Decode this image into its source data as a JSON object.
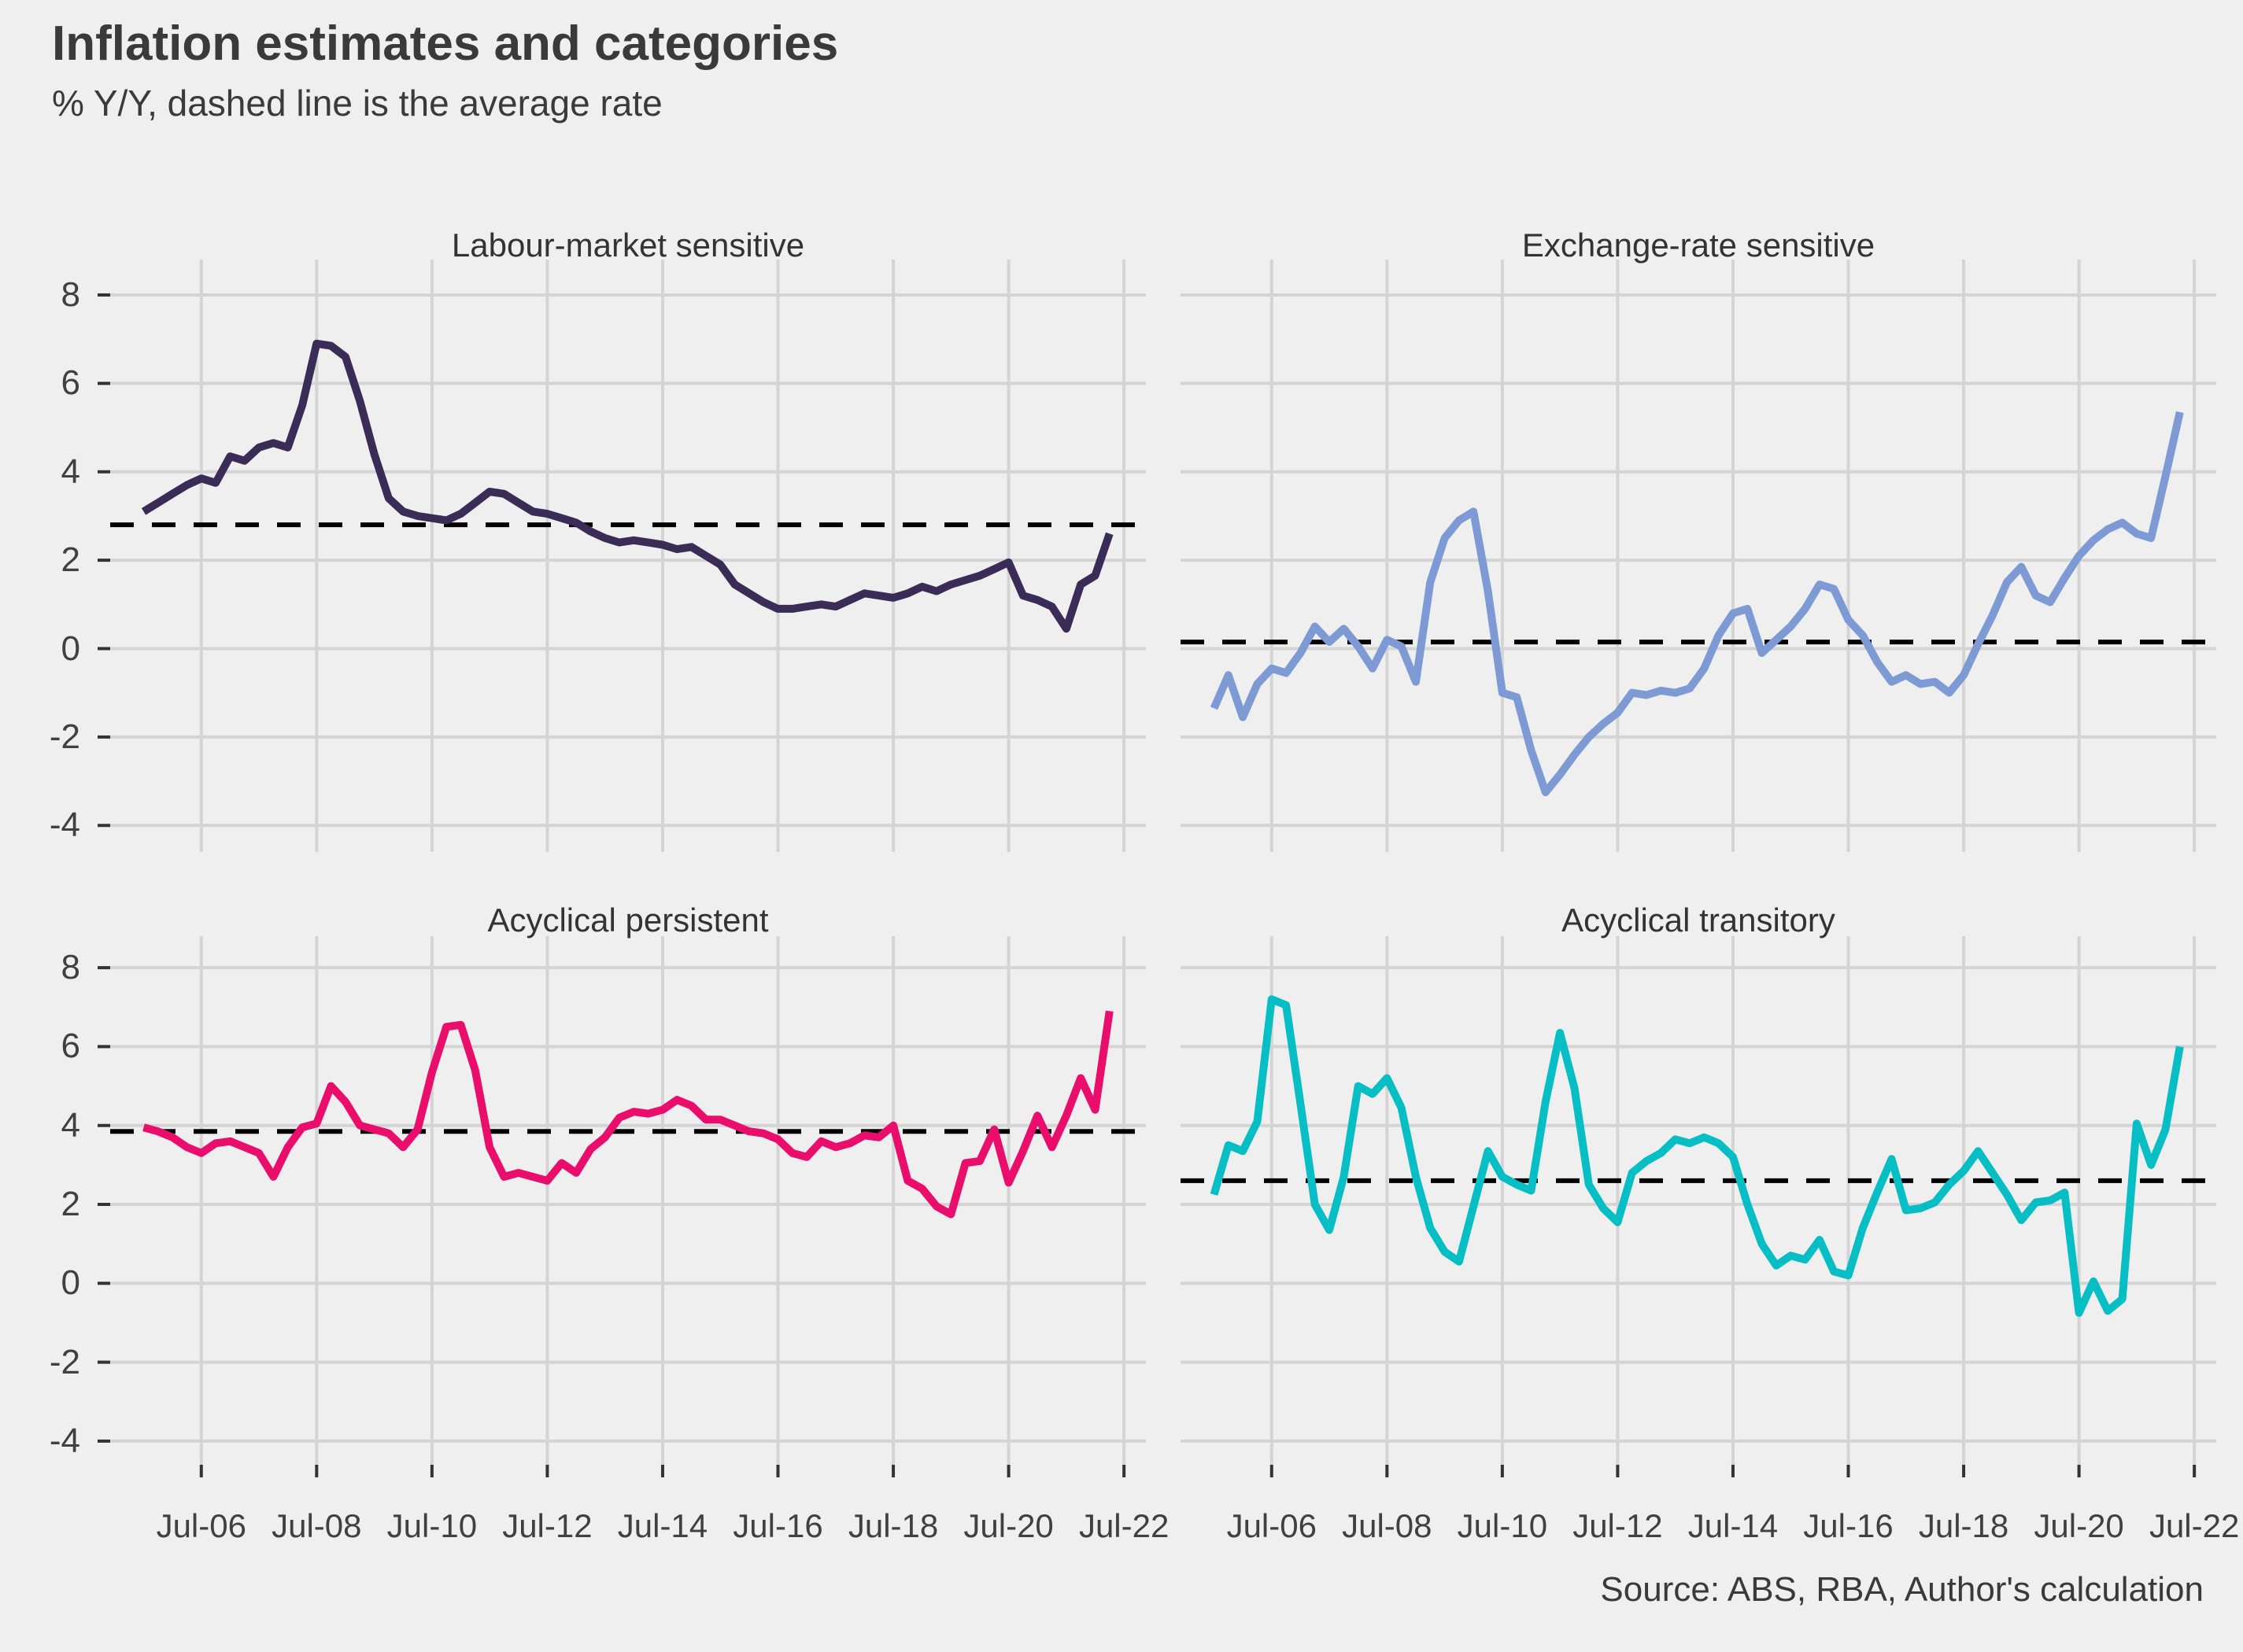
{
  "header": {
    "title": "Inflation estimates and categories",
    "subtitle": "% Y/Y, dashed line is the average rate"
  },
  "source": "Source: ABS, RBA, Author's calculation",
  "chart_data": {
    "type": "line",
    "layout": "2x2 faceted line chart, shared axes, dashed horizontal average line per panel",
    "x_unit": "quarterly, labelled as Jul of even years",
    "x_start": 2005.5,
    "x_step": 0.25,
    "x_range": [
      2004.92,
      2022.88
    ],
    "y_range": [
      -4.6,
      8.8
    ],
    "grid": true,
    "colors": {
      "background": "#EFEFEF",
      "gridline": "#D4D4D4",
      "average_line": "#000000",
      "tick": "#333333",
      "axis_text": "#404040"
    },
    "axes": {
      "y_labels": [
        "8",
        "6",
        "4",
        "2",
        "0",
        "-2",
        "-4"
      ],
      "y_values": [
        8,
        6,
        4,
        2,
        0,
        -2,
        -4
      ],
      "x_labels": [
        "Jul-06",
        "Jul-08",
        "Jul-10",
        "Jul-12",
        "Jul-14",
        "Jul-16",
        "Jul-18",
        "Jul-20",
        "Jul-22"
      ],
      "x_values": [
        2006.5,
        2008.5,
        2010.5,
        2012.5,
        2014.5,
        2016.5,
        2018.5,
        2020.5,
        2022.5
      ]
    },
    "panels": [
      {
        "title": "Labour-market sensitive",
        "color": "#3B2C57",
        "average": 2.8,
        "values": [
          3.1,
          3.3,
          3.5,
          3.7,
          3.85,
          3.75,
          4.35,
          4.25,
          4.55,
          4.65,
          4.55,
          5.5,
          6.9,
          6.85,
          6.6,
          5.6,
          4.4,
          3.4,
          3.1,
          3.0,
          2.95,
          2.9,
          3.05,
          3.3,
          3.55,
          3.5,
          3.3,
          3.1,
          3.05,
          2.95,
          2.85,
          2.65,
          2.5,
          2.4,
          2.45,
          2.4,
          2.35,
          2.25,
          2.3,
          2.1,
          1.9,
          1.45,
          1.25,
          1.05,
          0.9,
          0.9,
          0.95,
          1.0,
          0.95,
          1.1,
          1.25,
          1.2,
          1.15,
          1.25,
          1.4,
          1.3,
          1.45,
          1.55,
          1.65,
          1.8,
          1.95,
          1.2,
          1.1,
          0.95,
          0.45,
          1.45,
          1.65,
          2.6
        ]
      },
      {
        "title": "Exchange-rate sensitive",
        "color": "#7D9AD5",
        "average": 0.15,
        "values": [
          -1.35,
          -0.6,
          -1.55,
          -0.8,
          -0.45,
          -0.55,
          -0.1,
          0.5,
          0.15,
          0.45,
          0.05,
          -0.45,
          0.2,
          0.05,
          -0.75,
          1.5,
          2.5,
          2.9,
          3.1,
          1.3,
          -1.0,
          -1.1,
          -2.3,
          -3.25,
          -2.85,
          -2.4,
          -2.0,
          -1.7,
          -1.45,
          -1.0,
          -1.05,
          -0.95,
          -1.0,
          -0.9,
          -0.45,
          0.3,
          0.8,
          0.9,
          -0.1,
          0.2,
          0.5,
          0.9,
          1.45,
          1.35,
          0.65,
          0.3,
          -0.3,
          -0.75,
          -0.6,
          -0.8,
          -0.75,
          -1.0,
          -0.6,
          0.1,
          0.75,
          1.5,
          1.85,
          1.2,
          1.05,
          1.6,
          2.1,
          2.45,
          2.7,
          2.85,
          2.6,
          2.5,
          3.9,
          5.35
        ]
      },
      {
        "title": "Acyclical persistent",
        "color": "#EA0E6C",
        "average": 3.85,
        "values": [
          3.95,
          3.85,
          3.7,
          3.45,
          3.3,
          3.55,
          3.6,
          3.45,
          3.3,
          2.7,
          3.45,
          3.95,
          4.05,
          5.0,
          4.6,
          4.0,
          3.9,
          3.8,
          3.45,
          3.9,
          5.35,
          6.5,
          6.55,
          5.4,
          3.45,
          2.7,
          2.8,
          2.7,
          2.6,
          3.05,
          2.8,
          3.4,
          3.7,
          4.2,
          4.35,
          4.3,
          4.4,
          4.65,
          4.5,
          4.15,
          4.15,
          4.0,
          3.85,
          3.8,
          3.65,
          3.3,
          3.2,
          3.6,
          3.45,
          3.55,
          3.75,
          3.7,
          4.0,
          2.6,
          2.4,
          1.95,
          1.75,
          3.05,
          3.1,
          3.9,
          2.55,
          3.35,
          4.25,
          3.45,
          4.25,
          5.2,
          4.4,
          6.9
        ]
      },
      {
        "title": "Acyclical transitory",
        "color": "#08BEC5",
        "average": 2.6,
        "values": [
          2.25,
          3.5,
          3.35,
          4.1,
          7.2,
          7.05,
          4.55,
          2.0,
          1.35,
          2.7,
          5.0,
          4.8,
          5.2,
          4.45,
          2.7,
          1.4,
          0.8,
          0.55,
          1.95,
          3.35,
          2.7,
          2.5,
          2.35,
          4.6,
          6.35,
          4.95,
          2.5,
          1.9,
          1.55,
          2.8,
          3.1,
          3.3,
          3.65,
          3.55,
          3.7,
          3.55,
          3.2,
          2.0,
          1.0,
          0.45,
          0.7,
          0.6,
          1.1,
          0.3,
          0.2,
          1.4,
          2.3,
          3.15,
          1.85,
          1.9,
          2.05,
          2.5,
          2.85,
          3.35,
          2.8,
          2.25,
          1.6,
          2.05,
          2.1,
          2.3,
          -0.75,
          0.05,
          -0.7,
          -0.4,
          4.05,
          3.0,
          3.9,
          6.0
        ]
      }
    ]
  }
}
